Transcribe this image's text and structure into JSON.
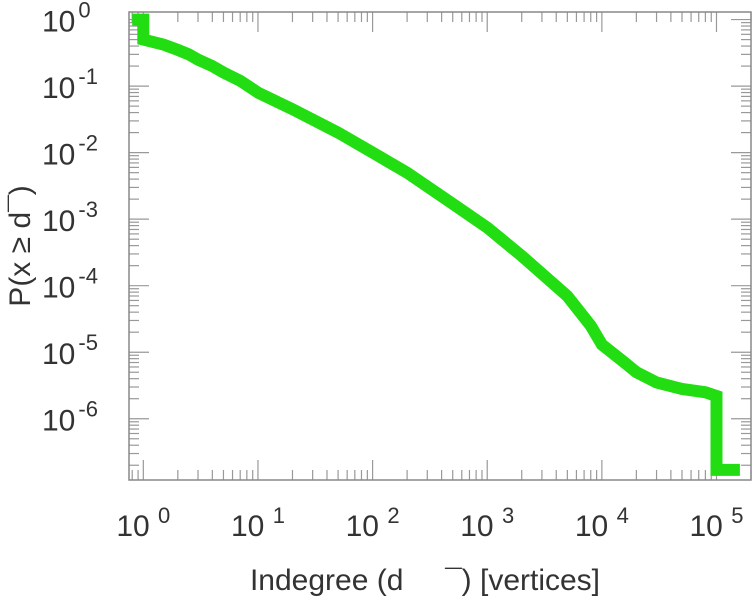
{
  "chart_data": {
    "type": "line",
    "title": "",
    "xlabel": "Indegree (d     ¯) [vertices]",
    "ylabel": "P(x ≥ d¯)",
    "x_scale": "log",
    "y_scale": "log",
    "xlim": [
      0.75,
      200000
    ],
    "ylim": [
      1.2e-07,
      1.3
    ],
    "x_ticks": [
      {
        "value": 1,
        "base": "10",
        "exp": "0"
      },
      {
        "value": 10,
        "base": "10",
        "exp": "1"
      },
      {
        "value": 100,
        "base": "10",
        "exp": "2"
      },
      {
        "value": 1000,
        "base": "10",
        "exp": "3"
      },
      {
        "value": 10000,
        "base": "10",
        "exp": "4"
      },
      {
        "value": 100000,
        "base": "10",
        "exp": "5"
      }
    ],
    "y_ticks": [
      {
        "value": 1,
        "base": "10",
        "exp": "0"
      },
      {
        "value": 0.1,
        "base": "10",
        "exp": "-1"
      },
      {
        "value": 0.01,
        "base": "10",
        "exp": "-2"
      },
      {
        "value": 0.001,
        "base": "10",
        "exp": "-3"
      },
      {
        "value": 0.0001,
        "base": "10",
        "exp": "-4"
      },
      {
        "value": 1e-05,
        "base": "10",
        "exp": "-5"
      },
      {
        "value": 1e-06,
        "base": "10",
        "exp": "-6"
      }
    ],
    "grid": false,
    "legend": "none",
    "series": [
      {
        "color": "#22dd11",
        "step": true,
        "x": [
          0.8,
          1,
          1,
          1.5,
          2,
          2.5,
          3,
          4,
          5,
          7,
          10,
          20,
          50,
          100,
          200,
          500,
          1000,
          2000,
          5000,
          8000,
          10000,
          15000,
          20000,
          30000,
          50000,
          80000,
          100000,
          100000,
          160000
        ],
        "y": [
          1.0,
          1.0,
          0.5,
          0.42,
          0.35,
          0.3,
          0.25,
          0.2,
          0.16,
          0.12,
          0.08,
          0.045,
          0.02,
          0.01,
          0.005,
          0.0017,
          0.00075,
          0.00028,
          7e-05,
          2.5e-05,
          1.3e-05,
          7.5e-06,
          5e-06,
          3.5e-06,
          2.8e-06,
          2.5e-06,
          2.2e-06,
          1.7e-07,
          1.7e-07
        ]
      }
    ]
  }
}
